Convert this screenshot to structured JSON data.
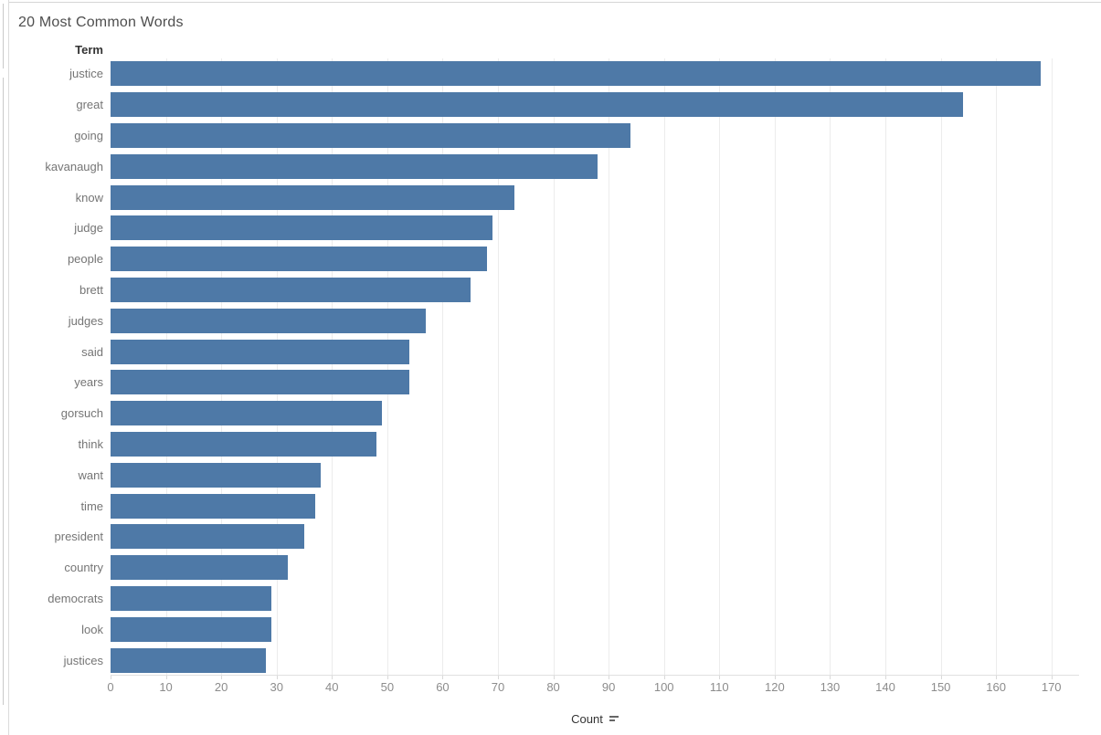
{
  "chart_data": {
    "type": "bar",
    "orientation": "horizontal",
    "title": "20 Most Common Words",
    "y_header": "Term",
    "xlabel": "Count",
    "categories": [
      "justice",
      "great",
      "going",
      "kavanaugh",
      "know",
      "judge",
      "people",
      "brett",
      "judges",
      "said",
      "years",
      "gorsuch",
      "think",
      "want",
      "time",
      "president",
      "country",
      "democrats",
      "look",
      "justices"
    ],
    "values": [
      168,
      154,
      94,
      88,
      73,
      69,
      68,
      65,
      57,
      54,
      54,
      49,
      48,
      38,
      37,
      35,
      32,
      29,
      29,
      28
    ],
    "x_ticks": [
      0,
      10,
      20,
      30,
      40,
      50,
      60,
      70,
      80,
      90,
      100,
      110,
      120,
      130,
      140,
      150,
      160,
      170
    ],
    "xlim": [
      0,
      175
    ],
    "grid": "vertical-only",
    "legend": "none",
    "sort_indicator": "descending",
    "colors": {
      "bar": "#4e79a7",
      "gridline": "#ececec",
      "title_text": "#4e4e4e",
      "term_label_text": "#757575",
      "tick_label_text": "#8c8c8c",
      "axis_title_text": "#333333"
    }
  }
}
